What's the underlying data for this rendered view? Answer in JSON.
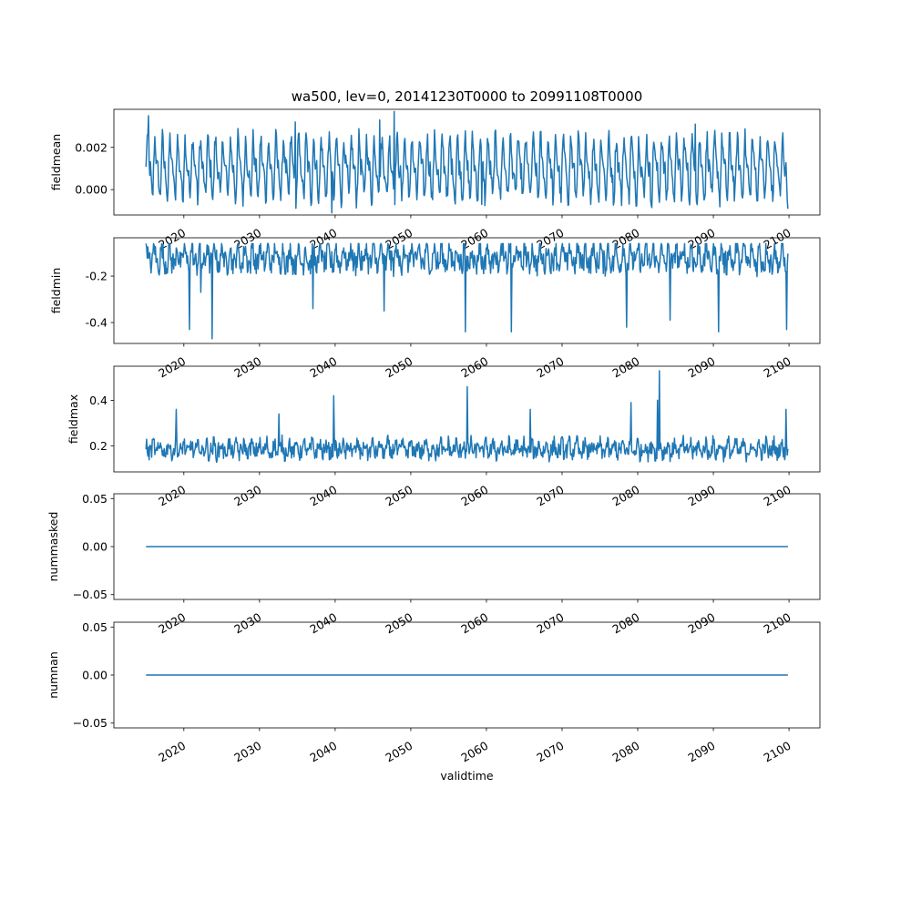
{
  "chart_data": {
    "title": "wa500, lev=0, 20141230T0000 to 20991108T0000",
    "xlabel": "validtime",
    "x_range": [
      "2014-12-30",
      "2099-11-08"
    ],
    "xlim": [
      "2010-10-01",
      "2104-02-01"
    ],
    "xticks": [
      "2020",
      "2030",
      "2040",
      "2050",
      "2060",
      "2070",
      "2080",
      "2090",
      "2100"
    ],
    "line_color": "#1f77b4",
    "panels": [
      {
        "type": "line",
        "ylabel": "fieldmean",
        "ylim": [
          -0.0012,
          0.0038
        ],
        "yticks": [
          "0.000",
          "0.002"
        ],
        "ytick_values": [
          0.0,
          0.002
        ],
        "baseline": 0.001,
        "amplitude": 0.0011,
        "noise": 0.0005,
        "values_range": [
          -0.0011,
          0.0037
        ],
        "notable_points": [
          {
            "x": 2015.3,
            "y": 0.0035
          },
          {
            "x": 2034.7,
            "y": 0.0032
          },
          {
            "x": 2039.6,
            "y": -0.0011
          },
          {
            "x": 2047.8,
            "y": 0.0037
          },
          {
            "x": 2045.9,
            "y": 0.0033
          },
          {
            "x": 2059.4,
            "y": -0.0007
          },
          {
            "x": 2081.7,
            "y": -0.0005
          },
          {
            "x": 2087.6,
            "y": 0.0031
          }
        ],
        "clip": [
          -0.0011,
          0.0037
        ]
      },
      {
        "type": "line",
        "ylabel": "fieldmin",
        "ylim": [
          -0.49,
          -0.035
        ],
        "yticks": [
          "-0.4",
          "-0.2"
        ],
        "ytick_values": [
          -0.4,
          -0.2
        ],
        "baseline": -0.12,
        "amplitude": 0.04,
        "noise": 0.05,
        "values_range": [
          -0.47,
          -0.06
        ],
        "notable_points": [
          {
            "x": 2020.7,
            "y": -0.43
          },
          {
            "x": 2023.7,
            "y": -0.47
          },
          {
            "x": 2022.2,
            "y": -0.27
          },
          {
            "x": 2037.1,
            "y": -0.34
          },
          {
            "x": 2046.5,
            "y": -0.35
          },
          {
            "x": 2057.2,
            "y": -0.44
          },
          {
            "x": 2063.3,
            "y": -0.44
          },
          {
            "x": 2078.5,
            "y": -0.42
          },
          {
            "x": 2084.3,
            "y": -0.39
          },
          {
            "x": 2090.7,
            "y": -0.44
          },
          {
            "x": 2099.7,
            "y": -0.43
          }
        ],
        "clip": [
          -0.47,
          -0.06
        ]
      },
      {
        "type": "line",
        "ylabel": "fieldmax",
        "ylim": [
          0.085,
          0.55
        ],
        "yticks": [
          "0.2",
          "0.4"
        ],
        "ytick_values": [
          0.2,
          0.4
        ],
        "baseline": 0.185,
        "amplitude": 0.02,
        "noise": 0.035,
        "values_range": [
          0.11,
          0.53
        ],
        "notable_points": [
          {
            "x": 2039.8,
            "y": 0.42
          },
          {
            "x": 2057.5,
            "y": 0.46
          },
          {
            "x": 2079.1,
            "y": 0.39
          },
          {
            "x": 2082.9,
            "y": 0.53
          },
          {
            "x": 2082.6,
            "y": 0.4
          },
          {
            "x": 2019.0,
            "y": 0.36
          },
          {
            "x": 2032.6,
            "y": 0.34
          },
          {
            "x": 2065.8,
            "y": 0.36
          },
          {
            "x": 2099.6,
            "y": 0.36
          }
        ],
        "clip": [
          0.11,
          0.53
        ]
      },
      {
        "type": "line",
        "ylabel": "nummasked",
        "ylim": [
          -0.055,
          0.055
        ],
        "yticks": [
          "−0.05",
          "0.00",
          "0.05"
        ],
        "ytick_values": [
          -0.05,
          0.0,
          0.05
        ],
        "constant": 0.0
      },
      {
        "type": "line",
        "ylabel": "numnan",
        "ylim": [
          -0.055,
          0.055
        ],
        "yticks": [
          "−0.05",
          "0.00",
          "0.05"
        ],
        "ytick_values": [
          -0.05,
          0.0,
          0.05
        ],
        "constant": 0.0
      }
    ]
  }
}
